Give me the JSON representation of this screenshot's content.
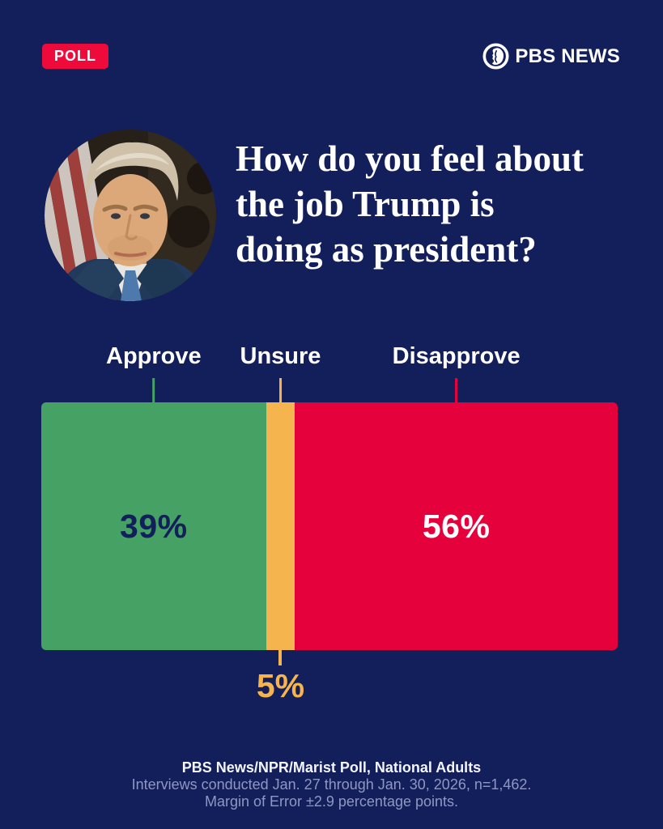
{
  "header": {
    "badge_label": "POLL",
    "brand_name": "PBS NEWS"
  },
  "headline_lines": [
    "How do you feel about",
    "the job Trump is",
    "doing as president?"
  ],
  "chart_data": {
    "type": "bar",
    "stacked": true,
    "orientation": "horizontal",
    "title": "How do you feel about the job Trump is doing as president?",
    "categories": [
      "Approve",
      "Unsure",
      "Disapprove"
    ],
    "values": [
      39,
      5,
      56
    ],
    "unit": "%",
    "value_labels": [
      "39%",
      "5%",
      "56%"
    ],
    "segment_colors": [
      "#45a164",
      "#f5b44d",
      "#e4013c"
    ],
    "value_label_colors": [
      "#131f5b",
      "#f5b44d",
      "#ffffff"
    ],
    "background_color": "#131f5b",
    "legend_position": "labels-above-with-ticks",
    "unsure_label_position": "below-bar"
  },
  "footer_lines": [
    "PBS News/NPR/Marist Poll, National Adults",
    "Interviews conducted Jan. 27 through Jan. 30, 2026, n=1,462.",
    "Margin of Error ±2.9 percentage points."
  ],
  "colors": {
    "background": "#131f5b",
    "badge_red": "#ee0b3c",
    "approve_green": "#45a164",
    "unsure_orange": "#f5b44d",
    "disapprove_red": "#e4013c",
    "footer_muted": "#8f97c2",
    "text_white": "#ffffff"
  }
}
